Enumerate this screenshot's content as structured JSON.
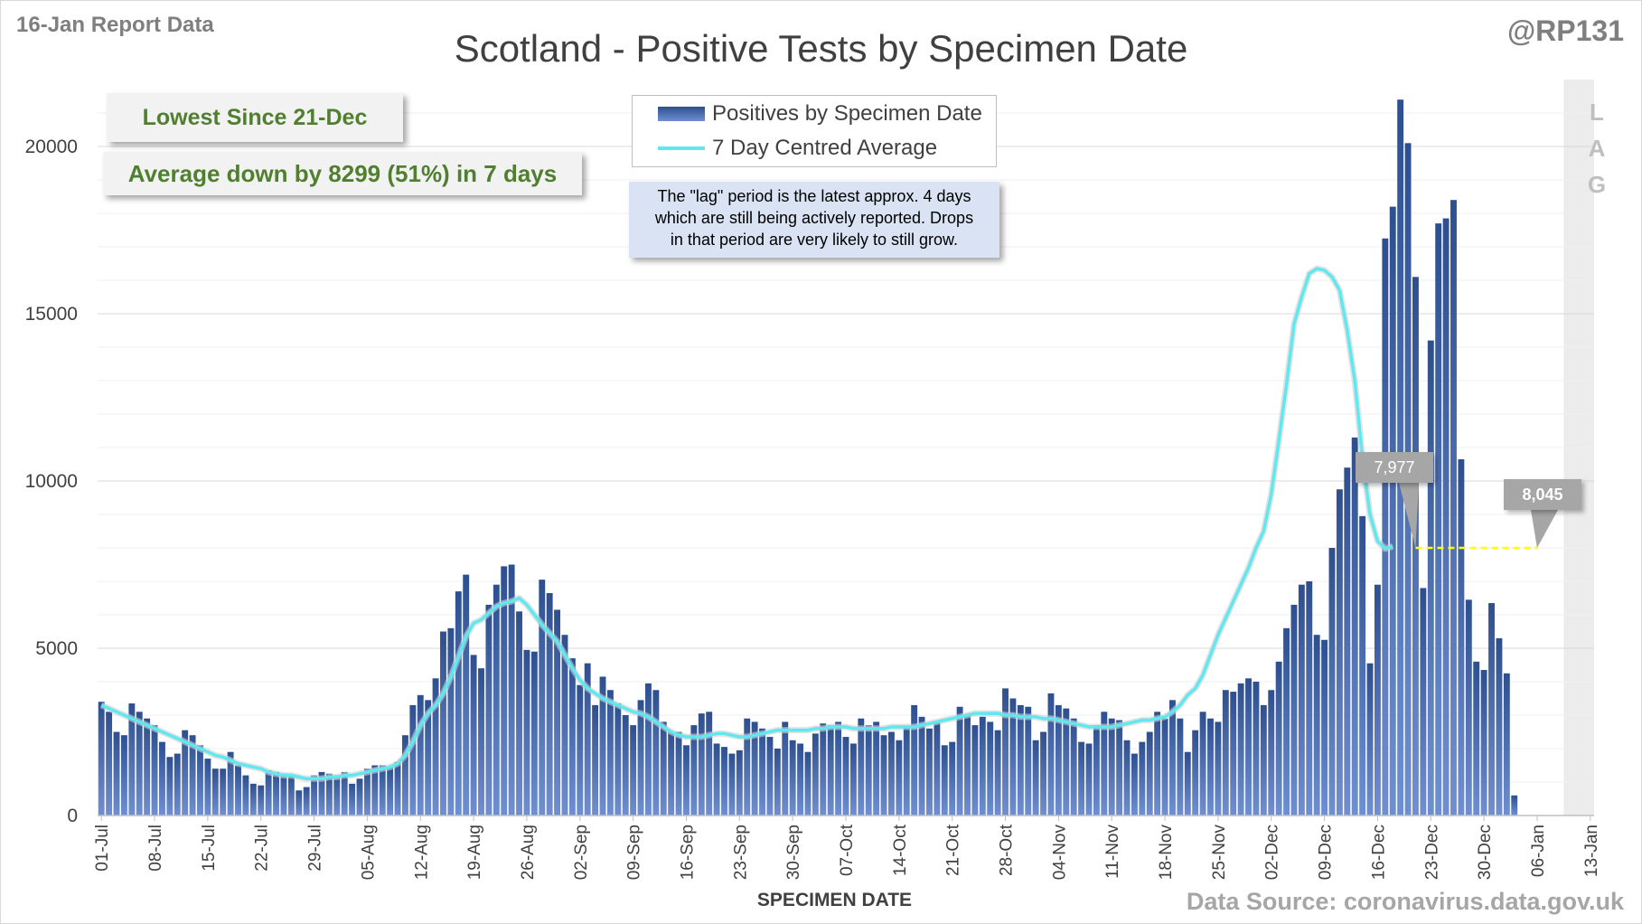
{
  "header": {
    "report_label": "16-Jan Report Data",
    "handle": "@RP131",
    "title": "Scotland - Positive Tests by Specimen Date"
  },
  "callouts": {
    "lowest": "Lowest Since 21-Dec",
    "average": "Average down by 8299 (51%) in 7 days"
  },
  "legend": {
    "bars": "Positives by Specimen Date",
    "line": "7 Day Centred Average"
  },
  "note": {
    "line1": "The \"lag\" period is the latest approx. 4 days",
    "line2": "which are still being actively reported.  Drops",
    "line3": "in that period are very likely to still grow."
  },
  "lag_letters": [
    "L",
    "A",
    "G"
  ],
  "markers": {
    "start_value": "7,977",
    "end_value": "8,045"
  },
  "footer": {
    "source": "Data Source: coronavirus.data.gov.uk"
  },
  "colors": {
    "bar_top": "#2e4f8f",
    "bar_bottom": "#6f8fd0",
    "average_line": "#5fe8f0",
    "reference_line": "#ffff00",
    "lag_band": "#ececec",
    "gridline": "#d9d9d9",
    "callout_text": "#4f7f2f",
    "note_fill": "#dae3f3",
    "marker_fill": "#a6a6a6"
  },
  "chart_data": {
    "type": "bar",
    "title": "Scotland - Positive Tests by Specimen Date",
    "xlabel": "SPECIMEN DATE",
    "ylabel": "",
    "ylim": [
      0,
      22000
    ],
    "yticks": [
      0,
      5000,
      10000,
      15000,
      20000
    ],
    "grid": true,
    "legend_position": "top-center",
    "x_tick_labels": [
      "01-Jul",
      "08-Jul",
      "15-Jul",
      "22-Jul",
      "29-Jul",
      "05-Aug",
      "12-Aug",
      "19-Aug",
      "26-Aug",
      "02-Sep",
      "09-Sep",
      "16-Sep",
      "23-Sep",
      "30-Sep",
      "07-Oct",
      "14-Oct",
      "21-Oct",
      "28-Oct",
      "04-Nov",
      "11-Nov",
      "18-Nov",
      "25-Nov",
      "02-Dec",
      "09-Dec",
      "16-Dec",
      "23-Dec",
      "30-Dec",
      "06-Jan",
      "13-Jan"
    ],
    "x_start": "2021-07-01",
    "x_end": "2022-01-13",
    "lag_period": [
      "2022-01-10",
      "2022-01-13"
    ],
    "reference_line": {
      "from": "2021-12-21",
      "to": "2022-01-06",
      "value": 8000
    },
    "series": [
      {
        "name": "Positives by Specimen Date",
        "kind": "bar",
        "values": [
          3400,
          3100,
          2500,
          2400,
          3350,
          3100,
          2900,
          2700,
          2200,
          1750,
          1850,
          2550,
          2400,
          2100,
          1700,
          1400,
          1400,
          1900,
          1500,
          1200,
          950,
          900,
          1350,
          1300,
          1250,
          1200,
          750,
          850,
          1200,
          1300,
          1250,
          1200,
          1300,
          950,
          1100,
          1400,
          1500,
          1500,
          1450,
          1600,
          2400,
          3300,
          3600,
          3450,
          4100,
          5500,
          5600,
          6700,
          7200,
          4800,
          4400,
          6300,
          6900,
          7450,
          7500,
          6100,
          4950,
          4900,
          7050,
          6650,
          6150,
          5400,
          4700,
          3900,
          4550,
          3300,
          4150,
          3750,
          3350,
          3000,
          2700,
          3450,
          3950,
          3750,
          2800,
          2500,
          2500,
          2100,
          2700,
          3050,
          3100,
          2150,
          2050,
          1850,
          1950,
          2900,
          2800,
          2600,
          2350,
          2000,
          2800,
          2250,
          2150,
          1900,
          2450,
          2750,
          2700,
          2800,
          2350,
          2150,
          2900,
          2700,
          2800,
          2400,
          2500,
          2250,
          2650,
          3300,
          2950,
          2600,
          2800,
          2100,
          2200,
          3250,
          3000,
          2700,
          2950,
          2800,
          2550,
          3800,
          3500,
          3300,
          3250,
          2250,
          2500,
          3650,
          3300,
          3200,
          2900,
          2200,
          2150,
          2700,
          3100,
          2900,
          2850,
          2250,
          1850,
          2200,
          2500,
          3100,
          2900,
          3450,
          2900,
          1900,
          2550,
          3100,
          2900,
          2800,
          3750,
          3700,
          3950,
          4100,
          4000,
          3300,
          3750,
          4600,
          5600,
          6300,
          6900,
          7000,
          5400,
          5250,
          8000,
          9750,
          10400,
          11300,
          8950,
          4550,
          6900,
          17250,
          18200,
          21400,
          20100,
          16100,
          6800,
          14200,
          17700,
          17850,
          18400,
          10650,
          6450,
          4600,
          4350,
          6350,
          5300,
          4250,
          600
        ]
      },
      {
        "name": "7 Day Centred Average",
        "kind": "line",
        "values": [
          3300,
          3200,
          3100,
          3000,
          2900,
          2800,
          2700,
          2600,
          2500,
          2400,
          2300,
          2200,
          2100,
          2000,
          1900,
          1800,
          1750,
          1650,
          1550,
          1500,
          1450,
          1400,
          1300,
          1250,
          1200,
          1200,
          1150,
          1100,
          1100,
          1100,
          1150,
          1150,
          1200,
          1200,
          1250,
          1300,
          1350,
          1400,
          1450,
          1550,
          1800,
          2200,
          2700,
          3050,
          3300,
          3650,
          4150,
          4750,
          5350,
          5750,
          5850,
          6050,
          6250,
          6350,
          6400,
          6500,
          6300,
          6000,
          5700,
          5450,
          5200,
          4800,
          4400,
          4050,
          3800,
          3650,
          3500,
          3400,
          3300,
          3200,
          3100,
          3050,
          2950,
          2800,
          2650,
          2500,
          2400,
          2350,
          2350,
          2350,
          2400,
          2450,
          2450,
          2400,
          2350,
          2350,
          2400,
          2450,
          2500,
          2550,
          2550,
          2550,
          2550,
          2550,
          2600,
          2600,
          2650,
          2650,
          2650,
          2600,
          2600,
          2600,
          2600,
          2600,
          2650,
          2650,
          2650,
          2650,
          2700,
          2750,
          2800,
          2850,
          2900,
          2950,
          3000,
          3050,
          3050,
          3050,
          3050,
          3000,
          3000,
          2950,
          2950,
          2950,
          2900,
          2900,
          2850,
          2800,
          2750,
          2700,
          2650,
          2650,
          2650,
          2650,
          2700,
          2750,
          2800,
          2850,
          2850,
          2900,
          2950,
          3100,
          3300,
          3600,
          3800,
          4200,
          4800,
          5400,
          5900,
          6400,
          6900,
          7400,
          8000,
          8500,
          9600,
          11200,
          12900,
          14700,
          15500,
          16200,
          16350,
          16300,
          16100,
          15700,
          14500,
          13000,
          10700,
          9000,
          8200,
          7977,
          8045,
          null,
          null,
          null,
          null
        ]
      }
    ]
  }
}
